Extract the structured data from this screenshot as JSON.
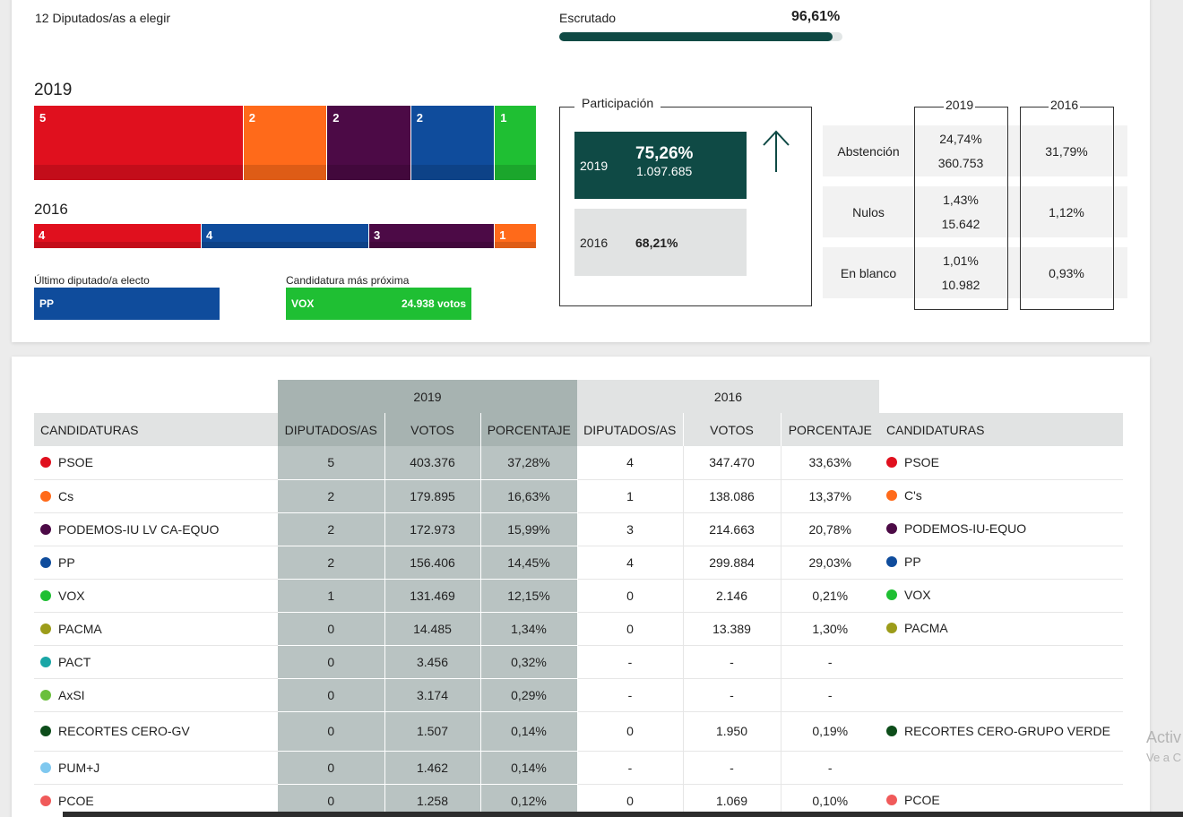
{
  "summary": {
    "seats_title": "12 Diputados/as a elegir",
    "escrutado_label": "Escrutado",
    "escrutado_pct": "96,61%",
    "escrutado_fraction": 0.9661
  },
  "bars": {
    "year_2019": "2019",
    "year_2016": "2016",
    "seg2019": [
      {
        "seats": "5",
        "color": "#e0101e"
      },
      {
        "seats": "2",
        "color": "#ff6a1a"
      },
      {
        "seats": "2",
        "color": "#4c0a46"
      },
      {
        "seats": "2",
        "color": "#0f4c9c"
      },
      {
        "seats": "1",
        "color": "#1fbf33"
      }
    ],
    "seg2016": [
      {
        "seats": "4",
        "color": "#e0101e"
      },
      {
        "seats": "4",
        "color": "#0f4c9c"
      },
      {
        "seats": "3",
        "color": "#4c0a46"
      },
      {
        "seats": "1",
        "color": "#ff6a1a"
      }
    ]
  },
  "last_elected": {
    "label": "Último diputado/a electo",
    "party": "PP"
  },
  "closest": {
    "label": "Candidatura más próxima",
    "party": "VOX",
    "votes": "24.938 votos"
  },
  "participation": {
    "title": "Participación",
    "y2019": "2019",
    "pct2019": "75,26%",
    "count2019": "1.097.685",
    "y2016": "2016",
    "pct2016": "68,21%",
    "trend_icon": "arrow-up-icon"
  },
  "stats": {
    "col2019": "2019",
    "col2016": "2016",
    "rows": [
      {
        "label": "Abstención",
        "pct2019": "24,74%",
        "count2019": "360.753",
        "pct2016": "31,79%"
      },
      {
        "label": "Nulos",
        "pct2019": "1,43%",
        "count2019": "15.642",
        "pct2016": "1,12%"
      },
      {
        "label": "En blanco",
        "pct2019": "1,01%",
        "count2019": "10.982",
        "pct2016": "0,93%"
      }
    ]
  },
  "table": {
    "year2019": "2019",
    "year2016": "2016",
    "headers": {
      "candidaturas": "CANDIDATURAS",
      "diputados": "DIPUTADOS/AS",
      "votos": "VOTOS",
      "porcentaje": "PORCENTAJE"
    },
    "rows": [
      {
        "name19": "PSOE",
        "color19": "#e0101e",
        "dip19": "5",
        "vot19": "403.376",
        "pct19": "37,28%",
        "dip16": "4",
        "vot16": "347.470",
        "pct16": "33,63%",
        "name16": "PSOE",
        "color16": "#e0101e"
      },
      {
        "name19": "Cs",
        "color19": "#ff6a1a",
        "dip19": "2",
        "vot19": "179.895",
        "pct19": "16,63%",
        "dip16": "1",
        "vot16": "138.086",
        "pct16": "13,37%",
        "name16": "C's",
        "color16": "#ff6a1a"
      },
      {
        "name19": "PODEMOS-IU LV CA-EQUO",
        "color19": "#4c0a46",
        "dip19": "2",
        "vot19": "172.973",
        "pct19": "15,99%",
        "dip16": "3",
        "vot16": "214.663",
        "pct16": "20,78%",
        "name16": "PODEMOS-IU-EQUO",
        "color16": "#4c0a46"
      },
      {
        "name19": "PP",
        "color19": "#0f4c9c",
        "dip19": "2",
        "vot19": "156.406",
        "pct19": "14,45%",
        "dip16": "4",
        "vot16": "299.884",
        "pct16": "29,03%",
        "name16": "PP",
        "color16": "#0f4c9c"
      },
      {
        "name19": "VOX",
        "color19": "#1fbf33",
        "dip19": "1",
        "vot19": "131.469",
        "pct19": "12,15%",
        "dip16": "0",
        "vot16": "2.146",
        "pct16": "0,21%",
        "name16": "VOX",
        "color16": "#1fbf33"
      },
      {
        "name19": "PACMA",
        "color19": "#9c9c1a",
        "dip19": "0",
        "vot19": "14.485",
        "pct19": "1,34%",
        "dip16": "0",
        "vot16": "13.389",
        "pct16": "1,30%",
        "name16": "PACMA",
        "color16": "#9c9c1a"
      },
      {
        "name19": "PACT",
        "color19": "#1aa6a6",
        "dip19": "0",
        "vot19": "3.456",
        "pct19": "0,32%",
        "dip16": "-",
        "vot16": "-",
        "pct16": "-",
        "name16": "",
        "color16": ""
      },
      {
        "name19": "AxSI",
        "color19": "#6abf3c",
        "dip19": "0",
        "vot19": "3.174",
        "pct19": "0,29%",
        "dip16": "-",
        "vot16": "-",
        "pct16": "-",
        "name16": "",
        "color16": ""
      },
      {
        "name19": "RECORTES CERO-GV",
        "color19": "#0d4d1a",
        "dip19": "0",
        "vot19": "1.507",
        "pct19": "0,14%",
        "dip16": "0",
        "vot16": "1.950",
        "pct16": "0,19%",
        "name16": "RECORTES CERO-GRUPO VERDE",
        "color16": "#0d4d1a"
      },
      {
        "name19": "PUM+J",
        "color19": "#7fc8ef",
        "dip19": "0",
        "vot19": "1.462",
        "pct19": "0,14%",
        "dip16": "-",
        "vot16": "-",
        "pct16": "-",
        "name16": "",
        "color16": ""
      },
      {
        "name19": "PCOE",
        "color19": "#f05a5a",
        "dip19": "0",
        "vot19": "1.258",
        "pct19": "0,12%",
        "dip16": "0",
        "vot16": "1.069",
        "pct16": "0,10%",
        "name16": "PCOE",
        "color16": "#f05a5a"
      }
    ]
  },
  "overlay": {
    "activate": "Activ",
    "activate_sub": "Ve a C"
  }
}
